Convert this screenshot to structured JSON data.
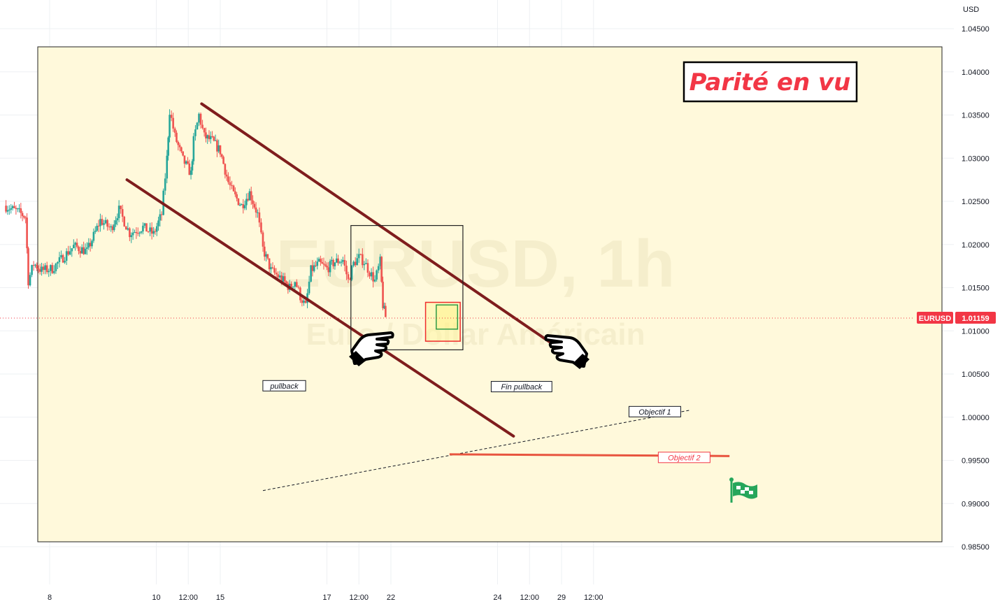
{
  "chart_data": {
    "type": "candlestick",
    "symbol": "EURUSD",
    "watermark_symbol": "EURUSD, 1h",
    "watermark_name": "Euro / Dollar Américain",
    "currency": "USD",
    "current_price": "1.01159",
    "title": "Parité en vu",
    "ylim": [
      0.983,
      1.0495
    ],
    "grid": true,
    "y_ticks": [
      "1.04500",
      "1.04000",
      "1.03500",
      "1.03000",
      "1.02500",
      "1.02000",
      "1.01500",
      "1.01000",
      "1.00500",
      "1.00000",
      "0.99500",
      "0.99000",
      "0.98500"
    ],
    "x_ticks": [
      {
        "label": "8",
        "t": 0
      },
      {
        "label": "10",
        "t": 40
      },
      {
        "label": "12:00",
        "t": 52
      },
      {
        "label": "15",
        "t": 64
      },
      {
        "label": "17",
        "t": 104
      },
      {
        "label": "12:00",
        "t": 116
      },
      {
        "label": "22",
        "t": 128
      },
      {
        "label": "24",
        "t": 168
      },
      {
        "label": "12:00",
        "t": 180
      },
      {
        "label": "29",
        "t": 192
      },
      {
        "label": "12:00",
        "t": 204
      }
    ],
    "price_path": [
      [
        -17,
        1.0245
      ],
      [
        -12,
        1.0238
      ],
      [
        -9,
        1.0232
      ],
      [
        -8,
        1.0158
      ],
      [
        -6,
        1.0178
      ],
      [
        -3,
        1.017
      ],
      [
        1,
        1.0172
      ],
      [
        5,
        1.0185
      ],
      [
        9,
        1.0198
      ],
      [
        14,
        1.0192
      ],
      [
        19,
        1.0228
      ],
      [
        23,
        1.0218
      ],
      [
        26,
        1.024
      ],
      [
        30,
        1.0213
      ],
      [
        35,
        1.022
      ],
      [
        39,
        1.0212
      ],
      [
        42,
        1.0235
      ],
      [
        44,
        1.03
      ],
      [
        45,
        1.0355
      ],
      [
        47,
        1.0325
      ],
      [
        50,
        1.0298
      ],
      [
        53,
        1.0282
      ],
      [
        54,
        1.032
      ],
      [
        56,
        1.035
      ],
      [
        58,
        1.0325
      ],
      [
        61,
        1.032
      ],
      [
        64,
        1.0308
      ],
      [
        67,
        1.0272
      ],
      [
        69,
        1.0258
      ],
      [
        72,
        1.0245
      ],
      [
        75,
        1.026
      ],
      [
        78,
        1.0235
      ],
      [
        80,
        1.0195
      ],
      [
        83,
        1.017
      ],
      [
        87,
        1.016
      ],
      [
        90,
        1.015
      ],
      [
        92,
        1.0158
      ],
      [
        94,
        1.014
      ],
      [
        96,
        1.0128
      ],
      [
        98,
        1.017
      ],
      [
        101,
        1.0178
      ],
      [
        104,
        1.0172
      ],
      [
        107,
        1.018
      ],
      [
        110,
        1.0182
      ],
      [
        112,
        1.0158
      ],
      [
        114,
        1.0178
      ],
      [
        116,
        1.0185
      ],
      [
        118,
        1.018
      ],
      [
        120,
        1.0168
      ],
      [
        122,
        1.0158
      ],
      [
        124,
        1.018
      ],
      [
        125,
        1.013
      ],
      [
        126,
        1.01159
      ]
    ],
    "annotations": {
      "channel_upper": [
        [
          57,
          1.0363
        ],
        [
          198,
          1.0065
        ]
      ],
      "channel_lower": [
        [
          29,
          1.0275
        ],
        [
          174,
          0.9978
        ]
      ],
      "pullback_box": {
        "t": [
          113,
          155
        ],
        "y": [
          1.0222,
          1.0078
        ]
      },
      "entry_outer": {
        "t": [
          141,
          154
        ],
        "y": [
          1.0133,
          1.0088
        ]
      },
      "entry_inner": {
        "t": [
          145,
          153
        ],
        "y": [
          1.013,
          1.0102
        ]
      },
      "target_line": [
        [
          80,
          0.9915
        ],
        [
          240,
          1.0008
        ]
      ],
      "objective2_line": [
        [
          150,
          0.9957
        ],
        [
          255,
          0.9955
        ]
      ],
      "labels": [
        {
          "text": "pullback",
          "t": 88,
          "y": 1.0036
        },
        {
          "text": "Fin pullback",
          "t": 177,
          "y": 1.0035
        },
        {
          "text": "Objectif 1",
          "t": 227,
          "y": 1.0006
        },
        {
          "text": "Objectif 2",
          "t": 238,
          "y": 0.9953
        }
      ]
    },
    "colors": {
      "up": "#26a69a",
      "down": "#ef5350",
      "channel": "#7f1d1d",
      "highlight_bg": "#fff9db",
      "objective2": "#e8553f",
      "label_price": "#f23645"
    }
  }
}
